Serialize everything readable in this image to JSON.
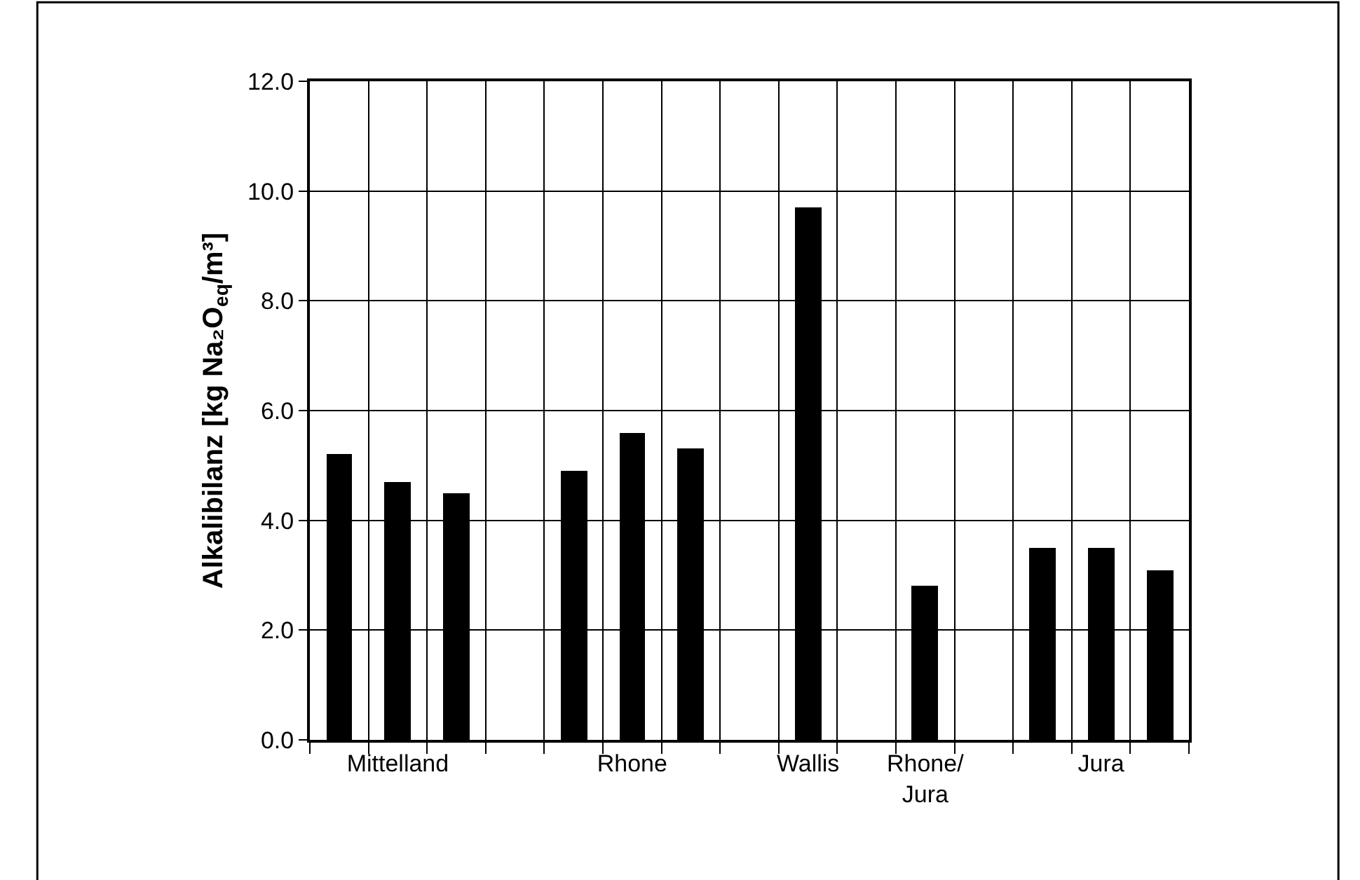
{
  "chart_data": {
    "type": "bar",
    "ylabel": "Alkalibilanz [kg Na₂O$_{eq}$/m³]",
    "categories": [
      null,
      "Mittelland",
      null,
      null,
      null,
      "Rhone",
      null,
      null,
      "Wallis",
      null,
      "Rhone/\nJura",
      null,
      null,
      "Jura",
      null
    ],
    "series": [
      {
        "color": "#000000",
        "values": [
          5.2,
          4.7,
          4.5,
          null,
          4.9,
          5.6,
          5.3,
          null,
          9.7,
          null,
          2.8,
          null,
          3.5,
          3.5,
          3.1
        ]
      }
    ],
    "ylim": [
      0,
      12
    ],
    "yticks": [
      {
        "value": 0,
        "label": "0.0"
      },
      {
        "value": 2,
        "label": "2.0"
      },
      {
        "value": 4,
        "label": "4.0"
      },
      {
        "value": 6,
        "label": "6.0"
      },
      {
        "value": 8,
        "label": "8.0"
      },
      {
        "value": 10,
        "label": "10.0"
      },
      {
        "value": 12,
        "label": "12.0"
      }
    ],
    "grid": true
  }
}
